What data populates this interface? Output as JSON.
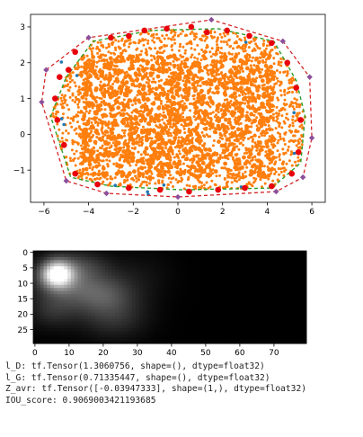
{
  "chart_data": [
    {
      "type": "scatter",
      "title": "",
      "xlabel": "",
      "ylabel": "",
      "xlim": [
        -6.6,
        6.6
      ],
      "ylim": [
        -1.9,
        3.35
      ],
      "xticks": [
        -6,
        -4,
        -2,
        0,
        2,
        4,
        6
      ],
      "yticks": [
        -1,
        0,
        1,
        2,
        3
      ],
      "xtick_labels": [
        "−6",
        "−4",
        "−2",
        "0",
        "2",
        "4",
        "6"
      ],
      "ytick_labels": [
        "−1",
        "0",
        "1",
        "2",
        "3"
      ],
      "grid": false,
      "series": [
        {
          "kind": "outer-hull",
          "style": "dashed",
          "color": "#d62728",
          "points": [
            [
              -5.9,
              1.8
            ],
            [
              -4.0,
              2.7
            ],
            [
              1.5,
              3.2
            ],
            [
              4.7,
              2.6
            ],
            [
              5.9,
              1.6
            ],
            [
              6.0,
              -0.1
            ],
            [
              5.6,
              -1.2
            ],
            [
              4.4,
              -1.6
            ],
            [
              0.0,
              -1.75
            ],
            [
              -3.2,
              -1.65
            ],
            [
              -5.0,
              -1.3
            ],
            [
              -6.1,
              0.9
            ]
          ]
        },
        {
          "kind": "inner-hull",
          "style": "dashed",
          "color": "#2ca02c",
          "points": [
            [
              -5.0,
              1.6
            ],
            [
              -3.8,
              2.6
            ],
            [
              -1.2,
              2.9
            ],
            [
              1.8,
              2.95
            ],
            [
              4.3,
              2.6
            ],
            [
              5.3,
              1.5
            ],
            [
              5.7,
              0.5
            ],
            [
              5.5,
              -0.8
            ],
            [
              4.2,
              -1.5
            ],
            [
              0.2,
              -1.55
            ],
            [
              -3.0,
              -1.45
            ],
            [
              -4.8,
              -1.2
            ],
            [
              -5.7,
              0.5
            ]
          ]
        },
        {
          "kind": "dense-sample",
          "color": "#ff7f0e",
          "description_count": 2500
        },
        {
          "kind": "sparse-sample",
          "color": "#1f77b4"
        },
        {
          "kind": "outer-vertices",
          "color": "#8c4f9a",
          "points": [
            [
              -5.9,
              1.8
            ],
            [
              -4.0,
              2.7
            ],
            [
              1.5,
              3.2
            ],
            [
              4.7,
              2.6
            ],
            [
              5.9,
              1.6
            ],
            [
              6.0,
              -0.1
            ],
            [
              5.6,
              -1.2
            ],
            [
              4.4,
              -1.6
            ],
            [
              0.0,
              -1.75
            ],
            [
              -3.2,
              -1.65
            ],
            [
              -5.0,
              -1.3
            ],
            [
              -6.1,
              0.9
            ]
          ]
        },
        {
          "kind": "edge-points",
          "color": "#e8000b",
          "points": [
            [
              -5.3,
              1.6
            ],
            [
              -4.6,
              2.3
            ],
            [
              -3.0,
              2.7
            ],
            [
              -1.5,
              2.9
            ],
            [
              -0.5,
              2.95
            ],
            [
              0.6,
              3.0
            ],
            [
              2.2,
              2.9
            ],
            [
              3.2,
              2.75
            ],
            [
              4.2,
              2.55
            ],
            [
              4.9,
              2.0
            ],
            [
              5.3,
              1.3
            ],
            [
              5.5,
              0.4
            ],
            [
              5.4,
              -0.5
            ],
            [
              5.1,
              -1.1
            ],
            [
              4.2,
              -1.45
            ],
            [
              3.0,
              -1.5
            ],
            [
              1.8,
              -1.55
            ],
            [
              0.5,
              -1.6
            ],
            [
              -0.8,
              -1.55
            ],
            [
              -2.2,
              -1.5
            ],
            [
              -3.6,
              -1.4
            ],
            [
              -4.6,
              -1.1
            ],
            [
              -5.1,
              -0.3
            ],
            [
              -5.4,
              0.4
            ],
            [
              -5.5,
              1.0
            ],
            [
              -4.9,
              1.8
            ],
            [
              -2.2,
              2.75
            ],
            [
              1.3,
              2.85
            ]
          ]
        }
      ]
    },
    {
      "type": "heatmap",
      "title": "",
      "xlabel": "",
      "ylabel": "",
      "xlim": [
        0,
        80
      ],
      "ylim": [
        0,
        30
      ],
      "xticks": [
        0,
        10,
        20,
        30,
        40,
        50,
        60,
        70
      ],
      "yticks": [
        0,
        5,
        10,
        15,
        20,
        25
      ],
      "xtick_labels": [
        "0",
        "10",
        "20",
        "30",
        "40",
        "50",
        "60",
        "70"
      ],
      "ytick_labels": [
        "0",
        "5",
        "10",
        "15",
        "20",
        "25"
      ],
      "colormap": "gray",
      "blobs": [
        {
          "x": 6.5,
          "y": 7.0,
          "sx": 3.2,
          "sy": 3.0,
          "amp": 0.97
        },
        {
          "x": 9.5,
          "y": 9.5,
          "sx": 6.5,
          "sy": 5.5,
          "amp": 0.33
        },
        {
          "x": 20.0,
          "y": 13.5,
          "sx": 6.0,
          "sy": 4.5,
          "amp": 0.26
        },
        {
          "x": 23.0,
          "y": 21.0,
          "sx": 7.0,
          "sy": 5.0,
          "amp": 0.18
        },
        {
          "x": 5.0,
          "y": 19.0,
          "sx": 5.0,
          "sy": 4.0,
          "amp": 0.15
        },
        {
          "x": 15.0,
          "y": 4.0,
          "sx": 5.0,
          "sy": 3.0,
          "amp": 0.12
        },
        {
          "x": 30.0,
          "y": 8.0,
          "sx": 7.0,
          "sy": 6.0,
          "amp": 0.07
        }
      ]
    }
  ],
  "console": {
    "lines": [
      "l_D: tf.Tensor(1.3060756, shape=(), dtype=float32)",
      "l_G: tf.Tensor(0.71335447, shape=(), dtype=float32)",
      "Z_avr: tf.Tensor([-0.03947333], shape=(1,), dtype=float32)",
      "IOU_score: 0.9069003421193685"
    ]
  }
}
